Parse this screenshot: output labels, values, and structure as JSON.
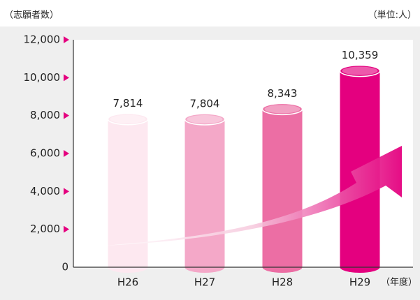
{
  "chart_data": {
    "type": "bar",
    "title": "（志願者数）",
    "unit_label": "（単位:人）",
    "x_label": "（年度）",
    "categories": [
      "H26",
      "H27",
      "H28",
      "H29"
    ],
    "values": [
      7814,
      7804,
      8343,
      10359
    ],
    "value_labels": [
      "7,814",
      "7,804",
      "8,343",
      "10,359"
    ],
    "colors": [
      "#fde8f0",
      "#f4a8c8",
      "#ec6ea4",
      "#e4007f"
    ],
    "ylim": [
      0,
      12000
    ],
    "yticks": [
      0,
      {
        "value": 2000,
        "label": "2,000"
      },
      {
        "value": 4000,
        "label": "4,000"
      },
      {
        "value": 6000,
        "label": "6,000"
      },
      {
        "value": 8000,
        "label": "8,000"
      },
      {
        "value": 10000,
        "label": "10,000"
      },
      {
        "value": 12000,
        "label": "12,000"
      }
    ]
  }
}
